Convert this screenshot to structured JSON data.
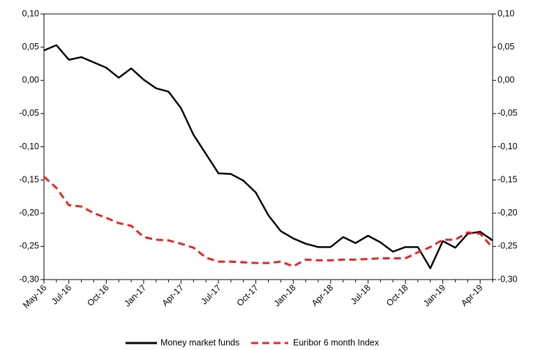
{
  "chart_data": {
    "type": "line",
    "categories": [
      "May-16",
      null,
      "Jul-16",
      null,
      null,
      "Oct-16",
      null,
      null,
      "Jan-17",
      null,
      null,
      "Apr-17",
      null,
      null,
      "Jul-17",
      null,
      null,
      "Oct-17",
      null,
      null,
      "Jan-18",
      null,
      null,
      "Apr-18",
      null,
      null,
      "Jul-18",
      null,
      null,
      "Oct-18",
      null,
      null,
      "Jan-19",
      null,
      null,
      "Apr-19",
      null
    ],
    "series": [
      {
        "name": "Money market funds",
        "color": "#000000",
        "dash": false,
        "values": [
          0.045,
          0.053,
          0.031,
          0.035,
          0.027,
          0.019,
          0.004,
          0.018,
          0.001,
          -0.012,
          -0.017,
          -0.042,
          -0.082,
          -0.111,
          -0.14,
          -0.141,
          -0.151,
          -0.169,
          -0.203,
          -0.227,
          -0.238,
          -0.246,
          -0.251,
          -0.251,
          -0.236,
          -0.245,
          -0.234,
          -0.244,
          -0.258,
          -0.251,
          -0.251,
          -0.283,
          -0.242,
          -0.252,
          -0.231,
          -0.228,
          -0.241
        ]
      },
      {
        "name": "Euribor 6 month Index",
        "color": "#e8231f",
        "dash": true,
        "values": [
          -0.145,
          -0.162,
          -0.188,
          -0.19,
          -0.2,
          -0.207,
          -0.215,
          -0.219,
          -0.236,
          -0.24,
          -0.241,
          -0.246,
          -0.252,
          -0.267,
          -0.273,
          -0.273,
          -0.274,
          -0.275,
          -0.275,
          -0.273,
          -0.28,
          -0.27,
          -0.271,
          -0.271,
          -0.27,
          -0.27,
          -0.269,
          -0.268,
          -0.268,
          -0.268,
          -0.259,
          -0.251,
          -0.24,
          -0.24,
          -0.229,
          -0.231,
          -0.252
        ]
      }
    ],
    "ylim": [
      -0.3,
      0.1
    ],
    "yticks": [
      {
        "value": -0.3,
        "label": "-0,30"
      },
      {
        "value": -0.25,
        "label": "-0,25"
      },
      {
        "value": -0.2,
        "label": "-0,20"
      },
      {
        "value": -0.15,
        "label": "-0,15"
      },
      {
        "value": -0.1,
        "label": "-0,10"
      },
      {
        "value": -0.05,
        "label": "-0,05"
      },
      {
        "value": 0,
        "label": "0,00"
      },
      {
        "value": 0.05,
        "label": "0,05"
      },
      {
        "value": 0.1,
        "label": "0,10"
      }
    ],
    "y2lim": [
      -0.3,
      0.1
    ],
    "y2ticks": [
      {
        "value": -0.3,
        "label": "-0,30"
      },
      {
        "value": -0.25,
        "label": "-0,25"
      },
      {
        "value": -0.2,
        "label": "-0,20"
      },
      {
        "value": -0.15,
        "label": "-0,15"
      },
      {
        "value": -0.1,
        "label": "-0,10"
      },
      {
        "value": -0.05,
        "label": "-0,05"
      },
      {
        "value": 0,
        "label": "0,00"
      },
      {
        "value": 0.05,
        "label": "0,05"
      },
      {
        "value": 0.1,
        "label": "0,10"
      }
    ],
    "grid": false
  }
}
